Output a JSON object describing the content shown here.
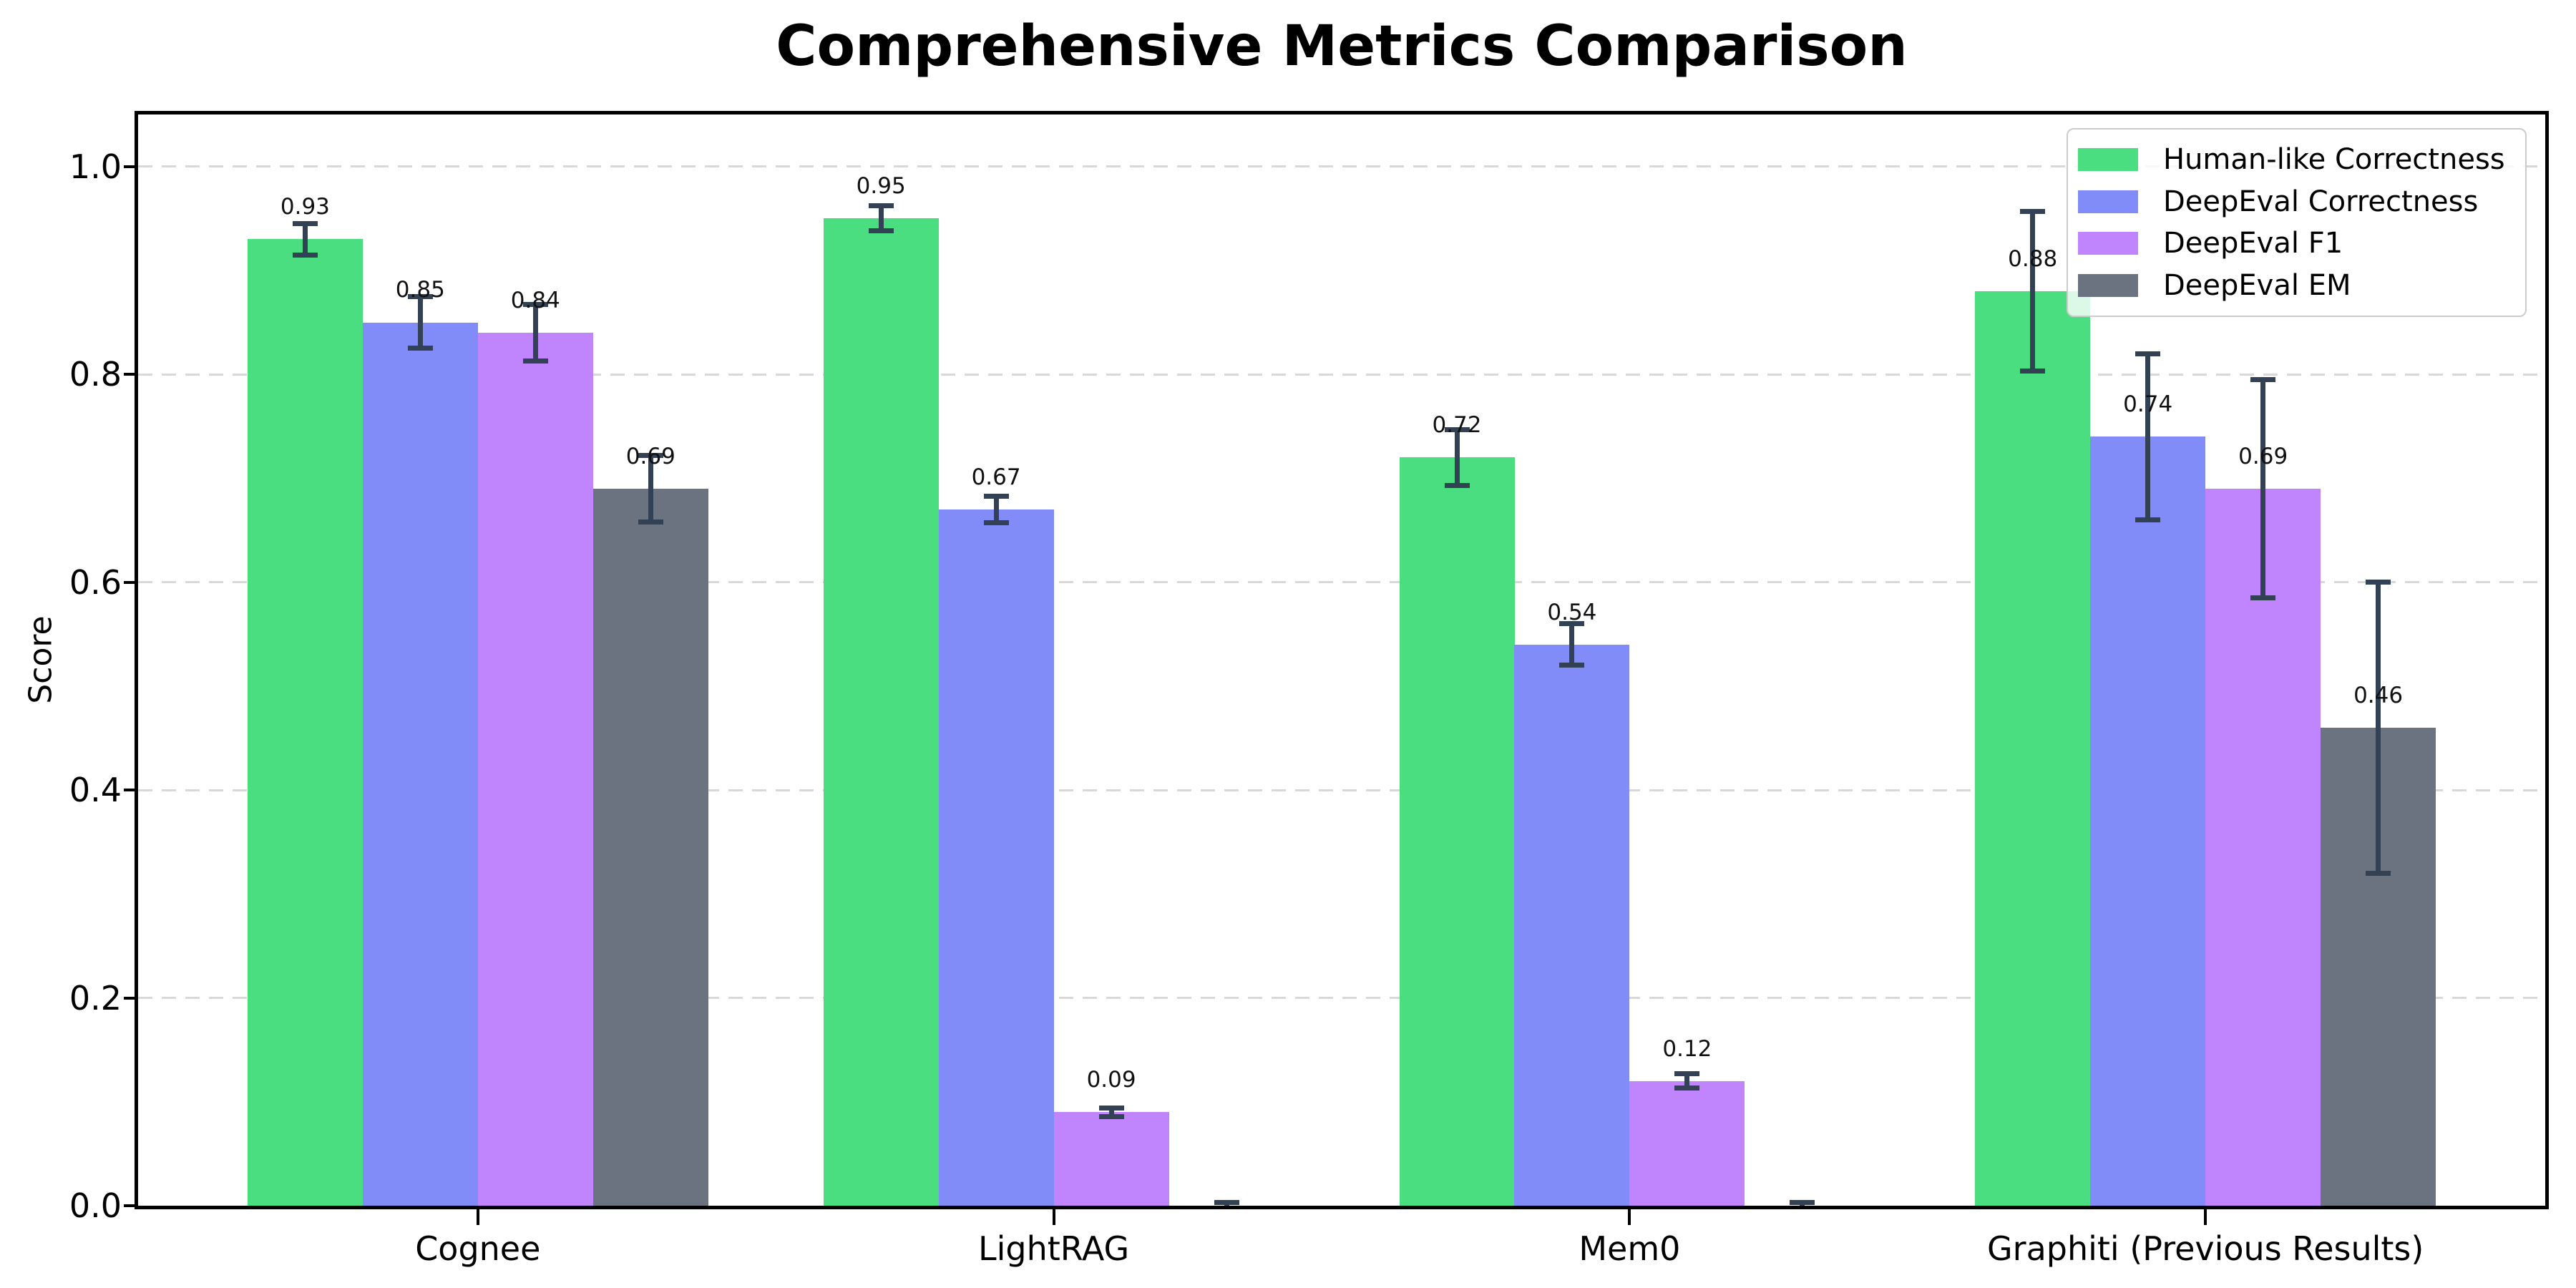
{
  "chart_data": {
    "type": "bar",
    "title": "Comprehensive Metrics Comparison",
    "xlabel": "",
    "ylabel": "Score",
    "categories": [
      "Cognee",
      "LightRAG",
      "Mem0",
      "Graphiti (Previous Results)"
    ],
    "series": [
      {
        "name": "Human-like Correctness",
        "color": "#4ade80",
        "values": [
          0.93,
          0.95,
          0.72,
          0.88
        ],
        "errors": [
          0.015,
          0.012,
          0.027,
          0.077
        ],
        "bar_labels": [
          "0.93",
          "0.95",
          "0.72",
          "0.88"
        ]
      },
      {
        "name": "DeepEval Correctness",
        "color": "#818cf8",
        "values": [
          0.85,
          0.67,
          0.54,
          0.74
        ],
        "errors": [
          0.025,
          0.013,
          0.02,
          0.08
        ],
        "bar_labels": [
          "0.85",
          "0.67",
          "0.54",
          "0.74"
        ]
      },
      {
        "name": "DeepEval F1",
        "color": "#c084fc",
        "values": [
          0.84,
          0.09,
          0.12,
          0.69
        ],
        "errors": [
          0.027,
          0.004,
          0.007,
          0.105
        ],
        "bar_labels": [
          "0.84",
          "0.09",
          "0.12",
          "0.69"
        ]
      },
      {
        "name": "DeepEval EM",
        "color": "#6b7280",
        "values": [
          0.69,
          0.0,
          0.0,
          0.46
        ],
        "errors": [
          0.032,
          0.003,
          0.003,
          0.14
        ],
        "bar_labels": [
          "0.69",
          "",
          "",
          "0.46"
        ]
      }
    ],
    "ylim": [
      0,
      1.05
    ],
    "yticks": [
      0,
      0.2,
      0.4,
      0.6,
      0.8,
      1.0
    ],
    "ytick_labels": [
      "0.0",
      "0.2",
      "0.4",
      "0.6",
      "0.8",
      "1.0"
    ],
    "grid": {
      "axis": "y",
      "style": "dashed",
      "color": "#d8d8d8"
    },
    "legend": {
      "position": "upper right"
    },
    "colors": {
      "error_bar": "#334155",
      "axis": "#000000",
      "background": "#ffffff",
      "text": "#000000"
    }
  }
}
